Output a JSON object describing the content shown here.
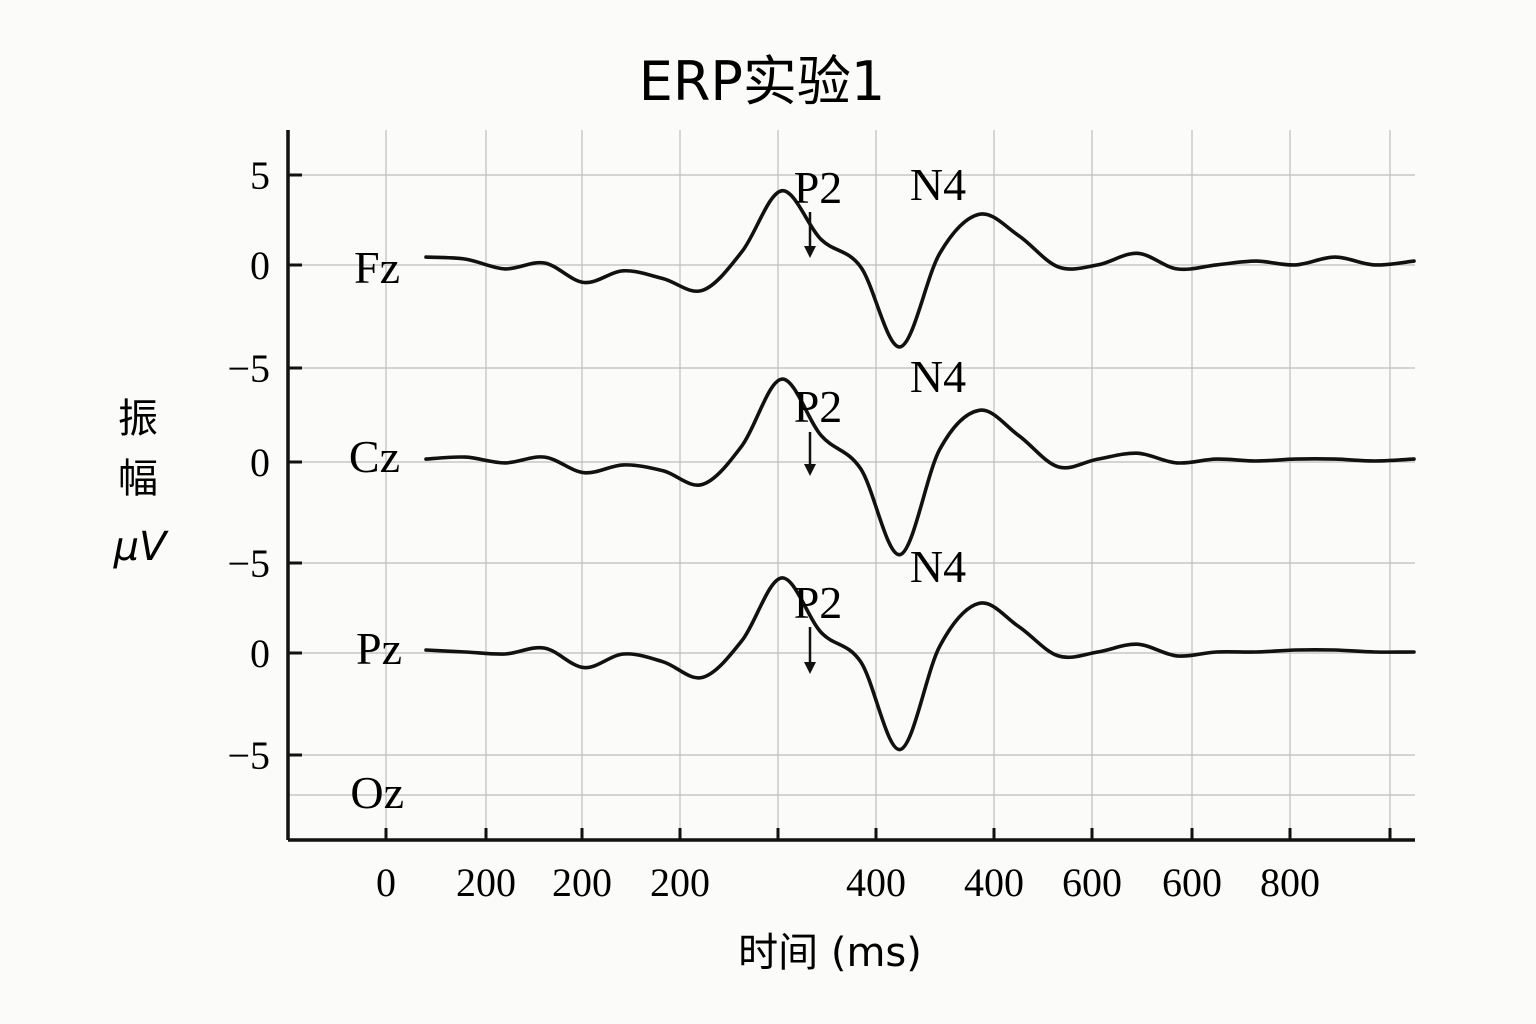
{
  "chart_data": {
    "type": "line",
    "title": "ERP实验1",
    "xlabel": "时间 (ms)",
    "ylabel": [
      "振",
      "幅",
      "μV"
    ],
    "x_tick_labels": [
      "0",
      "200",
      "200",
      "200",
      "400",
      "400",
      "600",
      "600",
      "800"
    ],
    "y_tick_labels": [
      "5",
      "0",
      "−5",
      "0",
      "−5",
      "0",
      "−5"
    ],
    "channel_labels": [
      "Fz",
      "Cz",
      "Pz",
      "Oz"
    ],
    "grid": true,
    "annotations": [
      {
        "channel": "Fz",
        "labels": [
          "P2",
          "N4"
        ]
      },
      {
        "channel": "Cz",
        "labels": [
          "P2",
          "N4"
        ]
      },
      {
        "channel": "Pz",
        "labels": [
          "P2",
          "N4"
        ]
      }
    ],
    "x": [
      0,
      40,
      80,
      120,
      160,
      200,
      240,
      280,
      320,
      360,
      400,
      440,
      480,
      520,
      560,
      600,
      640,
      680,
      720,
      760,
      800,
      840,
      880,
      920,
      960,
      1000
    ],
    "series": [
      {
        "name": "Fz",
        "values": [
          0.3,
          0.2,
          -0.3,
          0.0,
          -1.0,
          -0.4,
          -0.8,
          -1.4,
          0.6,
          3.7,
          1.2,
          -0.2,
          -4.3,
          0.5,
          2.5,
          1.4,
          -0.2,
          -0.1,
          0.5,
          -0.3,
          -0.1,
          0.1,
          -0.1,
          0.3,
          -0.1,
          0.1
        ]
      },
      {
        "name": "Cz",
        "values": [
          0.1,
          0.2,
          -0.1,
          0.2,
          -0.6,
          -0.2,
          -0.5,
          -1.2,
          0.8,
          4.2,
          1.3,
          -0.4,
          -4.8,
          0.6,
          2.6,
          1.3,
          -0.3,
          0.1,
          0.4,
          -0.1,
          0.1,
          0.0,
          0.1,
          0.1,
          0.0,
          0.1
        ]
      },
      {
        "name": "Pz",
        "values": [
          0.1,
          0.0,
          -0.1,
          0.2,
          -0.8,
          -0.1,
          -0.5,
          -1.3,
          0.6,
          3.8,
          1.0,
          -0.5,
          -5.0,
          0.3,
          2.5,
          1.3,
          -0.2,
          0.0,
          0.4,
          -0.2,
          0.0,
          0.0,
          0.1,
          0.1,
          0.0,
          0.0
        ]
      }
    ]
  }
}
